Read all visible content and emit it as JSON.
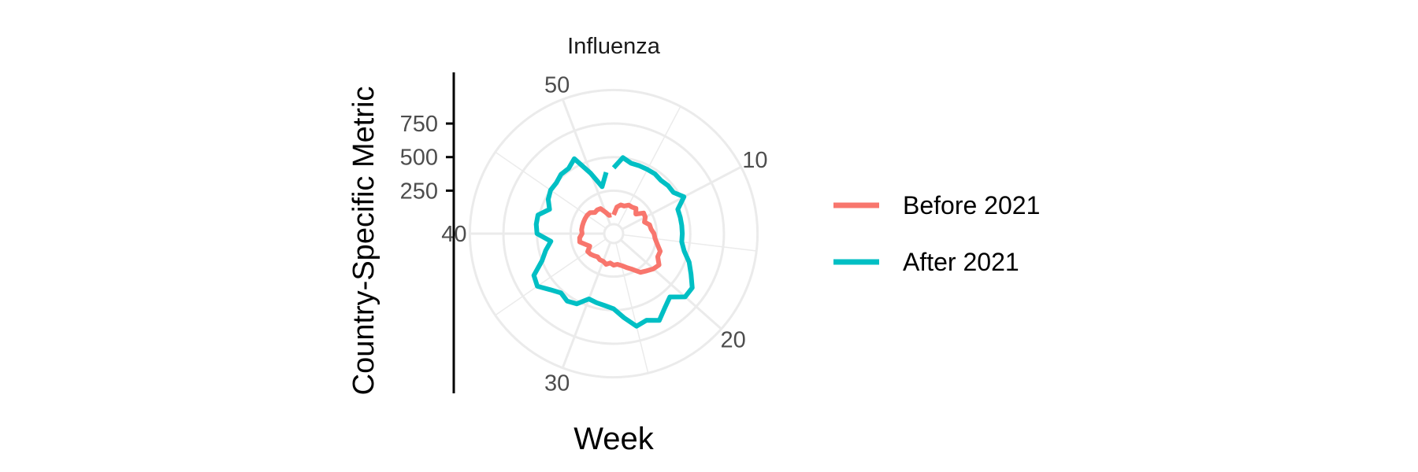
{
  "chart_data": {
    "type": "line",
    "coord": "polar",
    "title": "Influenza",
    "xlabel": "Week",
    "ylabel": "Country-Specific Metric",
    "radial_ticks": [
      250,
      500,
      750
    ],
    "angular_ticks": [
      10,
      20,
      30,
      40,
      50
    ],
    "grid": true,
    "legend_position": "right",
    "series": [
      {
        "name": "Before 2021",
        "color": "#F8766D",
        "weeks": [
          1,
          2,
          3,
          4,
          5,
          6,
          7,
          8,
          9,
          10,
          11,
          12,
          13,
          14,
          15,
          16,
          17,
          18,
          19,
          20,
          21,
          22,
          23,
          24,
          25,
          26,
          27,
          28,
          29,
          30,
          31,
          32,
          33,
          34,
          35,
          36,
          37,
          38,
          39,
          40,
          41,
          42,
          43,
          44,
          45,
          46,
          47,
          48,
          49,
          50,
          51,
          52
        ],
        "values": [
          70,
          130,
          150,
          150,
          170,
          170,
          180,
          150,
          200,
          195,
          175,
          205,
          210,
          230,
          240,
          265,
          300,
          300,
          340,
          325,
          300,
          280,
          230,
          200,
          175,
          160,
          165,
          150,
          165,
          150,
          150,
          140,
          150,
          160,
          165,
          130,
          155,
          190,
          185,
          165,
          170,
          170,
          170,
          170,
          170,
          165,
          140,
          145,
          140,
          100,
          70,
          70
        ]
      },
      {
        "name": "After 2021",
        "color": "#00BFC4",
        "weeks": [
          1,
          2,
          3,
          4,
          5,
          6,
          7,
          8,
          9,
          10,
          11,
          12,
          13,
          14,
          15,
          16,
          17,
          18,
          19,
          20,
          21,
          22,
          23,
          24,
          25,
          26,
          27,
          28,
          29,
          30,
          31,
          32,
          33,
          34,
          35,
          36,
          37,
          38,
          39,
          40,
          41,
          42,
          43,
          44,
          45,
          46,
          47,
          48,
          49,
          50,
          51,
          52
        ],
        "values": [
          420,
          500,
          470,
          470,
          470,
          470,
          460,
          470,
          470,
          520,
          440,
          440,
          440,
          440,
          440,
          470,
          530,
          580,
          640,
          640,
          560,
          600,
          660,
          620,
          640,
          560,
          490,
          470,
          460,
          450,
          520,
          540,
          520,
          560,
          620,
          600,
          500,
          450,
          400,
          500,
          510,
          510,
          440,
          480,
          500,
          500,
          520,
          520,
          560,
          410,
          290,
          390
        ]
      }
    ]
  }
}
